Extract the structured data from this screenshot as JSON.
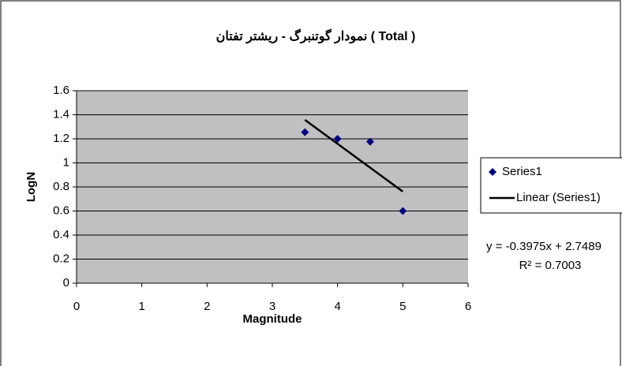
{
  "chart_data": {
    "type": "scatter",
    "title": "نمودار گوتنبرگ - ریشتر تفتان ( Total )",
    "x_label": "Magnitude",
    "y_label": "LogN",
    "series": [
      {
        "name": "Series1",
        "color": "#000080",
        "style": "marker",
        "x": [
          3.5,
          4,
          4.5,
          5
        ],
        "values": [
          1.255,
          1.2,
          1.176,
          0.6
        ]
      },
      {
        "name": "Linear (Series1)",
        "color": "#000000",
        "style": "line",
        "x": [
          3.5,
          5
        ],
        "values": [
          1.3577,
          0.7614
        ]
      }
    ],
    "equation": "y = -0.3975x + 2.7489",
    "r_squared": "R² = 0.7003",
    "xlim": [
      0,
      6
    ],
    "xticks": [
      0,
      1,
      2,
      3,
      4,
      5,
      6
    ],
    "ylim": [
      0,
      1.6
    ],
    "yticks": [
      0,
      0.2,
      0.4,
      0.6,
      0.8,
      1,
      1.2,
      1.4,
      1.6
    ],
    "grid": true,
    "plot_background": "#c0c0c0",
    "legend_position": "right"
  }
}
